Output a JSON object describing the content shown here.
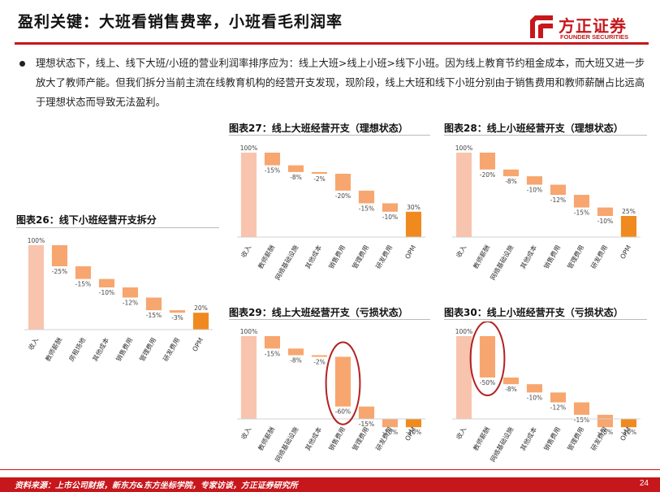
{
  "header": {
    "title": "盈利关键：大班看销售费率，小班看毛利润率",
    "logo_cn": "方正证券",
    "logo_en": "FOUNDER SECURITIES",
    "brand_color": "#c6171c"
  },
  "bullet": "理想状态下，线上、线下大班/小班的营业利润率排序应为：线上大班>线上小班>线下小班。因为线上教育节约租金成本，而大班又进一步放大了教师产能。但我们拆分当前主流在线教育机构的经营开支发现，现阶段，线上大班和线下小班分别由于销售费用和教师薪酬占比远高于理想状态而导致无法盈利。",
  "footer": {
    "source": "资料来源：上市公司财报，新东方&东方坐标学院，专家访谈，方正证券研究所",
    "page": "24"
  },
  "colors": {
    "total": "#f8c4ae",
    "step": "#f7a66f",
    "opm": "#f08a1e",
    "circle": "#b22222"
  },
  "chart_data": [
    {
      "title": "图表26：线下小班经营开支拆分",
      "type": "bar",
      "categories": [
        "收入",
        "教师薪酬",
        "房租场地",
        "其他成本",
        "销售费用",
        "管理费用",
        "研发费用",
        "OPM"
      ],
      "values": [
        100,
        -25,
        -15,
        -10,
        -12,
        -15,
        -3,
        20
      ],
      "labels": [
        "100%",
        "-25%",
        "-15%",
        "-10%",
        "-12%",
        "-15%",
        "-3%",
        "20%"
      ]
    },
    {
      "title": "图表27：线上大班经营开支（理想状态）",
      "type": "bar",
      "categories": [
        "收入",
        "教师薪酬",
        "网络基础设施",
        "其他成本",
        "销售费用",
        "管理费用",
        "研发费用",
        "OPM"
      ],
      "values": [
        100,
        -15,
        -8,
        -2,
        -20,
        -15,
        -10,
        30
      ],
      "labels": [
        "100%",
        "-15%",
        "-8%",
        "-2%",
        "-20%",
        "-15%",
        "-10%",
        "30%"
      ]
    },
    {
      "title": "图表28：线上小班经营开支（理想状态）",
      "type": "bar",
      "categories": [
        "收入",
        "教师薪酬",
        "网络基础设施",
        "其他成本",
        "销售费用",
        "管理费用",
        "研发费用",
        "OPM"
      ],
      "values": [
        100,
        -20,
        -8,
        -10,
        -12,
        -15,
        -10,
        25
      ],
      "labels": [
        "100%",
        "-20%",
        "-8%",
        "-10%",
        "-12%",
        "-15%",
        "-10%",
        "25%"
      ]
    },
    {
      "title": "图表29：线上大班经营开支（亏损状态）",
      "type": "bar",
      "categories": [
        "收入",
        "教师薪酬",
        "网络基础设施",
        "其他成本",
        "销售费用",
        "管理费用",
        "研发费用",
        "OPM"
      ],
      "values": [
        100,
        -15,
        -8,
        -2,
        -60,
        -15,
        -10,
        -10
      ],
      "labels": [
        "100%",
        "-15%",
        "-8%",
        "-2%",
        "-60%",
        "-15%",
        "-10%",
        "-10%"
      ],
      "highlight": 4
    },
    {
      "title": "图表30：线上小班经营开支（亏损状态）",
      "type": "bar",
      "categories": [
        "收入",
        "教师薪酬",
        "网络基础设施",
        "其他成本",
        "销售费用",
        "管理费用",
        "研发费用",
        "OPM"
      ],
      "values": [
        100,
        -50,
        -8,
        -10,
        -12,
        -15,
        -15,
        -10
      ],
      "labels": [
        "100%",
        "-50%",
        "-8%",
        "-10%",
        "-12%",
        "-15%",
        "-15%",
        "-10%"
      ],
      "highlight": 1
    }
  ]
}
